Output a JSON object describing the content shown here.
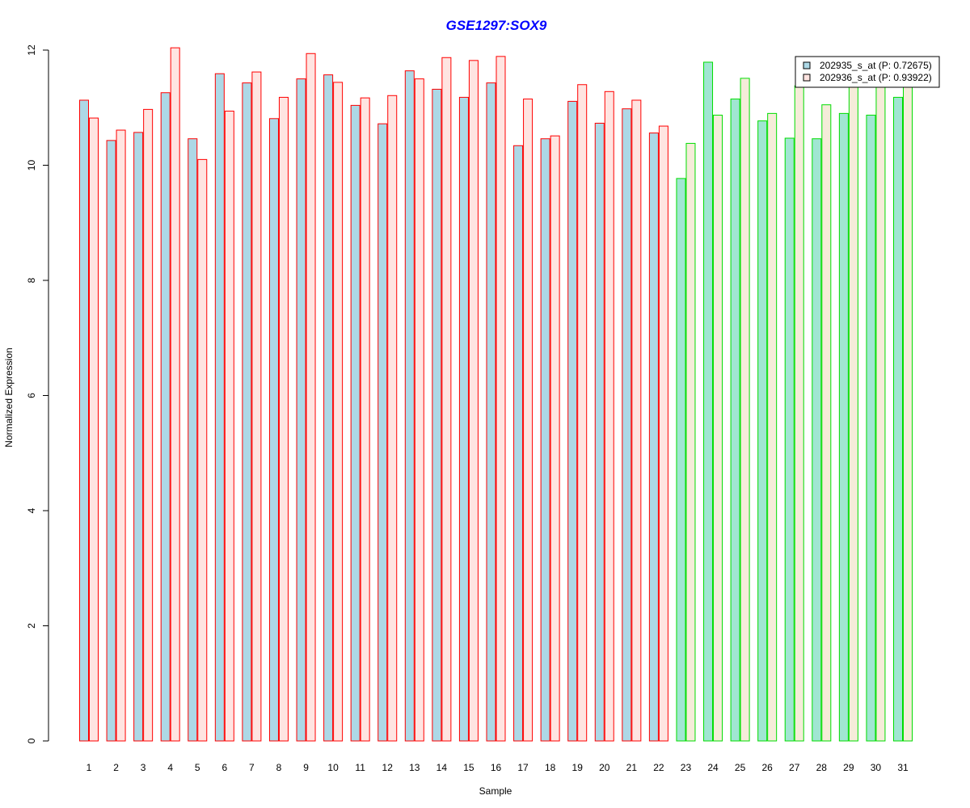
{
  "chart_data": {
    "type": "bar",
    "title": "GSE1297:SOX9",
    "xlabel": "Sample",
    "ylabel": "Normalized Expression",
    "ylim": [
      0,
      12
    ],
    "yticks": [
      0,
      2,
      4,
      6,
      8,
      10,
      12
    ],
    "grid": false,
    "legend_position": "top-right",
    "categories": [
      "1",
      "2",
      "3",
      "4",
      "5",
      "6",
      "7",
      "8",
      "9",
      "10",
      "11",
      "12",
      "13",
      "14",
      "15",
      "16",
      "17",
      "18",
      "19",
      "20",
      "21",
      "22",
      "23",
      "24",
      "25",
      "26",
      "27",
      "28",
      "29",
      "30",
      "31"
    ],
    "series": [
      {
        "name": "202935_s_at (P: 0.72675)",
        "values": [
          11.13,
          10.43,
          10.57,
          11.26,
          10.46,
          11.59,
          11.43,
          10.81,
          11.5,
          11.57,
          11.04,
          10.72,
          11.64,
          11.32,
          11.18,
          11.43,
          10.34,
          10.46,
          11.11,
          10.73,
          10.98,
          10.56,
          9.77,
          11.79,
          11.15,
          10.77,
          10.47,
          10.46,
          10.9,
          10.87,
          11.18
        ]
      },
      {
        "name": "202936_s_at (P: 0.93922)",
        "values": [
          10.82,
          10.61,
          10.97,
          12.04,
          10.1,
          10.94,
          11.62,
          11.18,
          11.94,
          11.44,
          11.17,
          11.21,
          11.5,
          11.87,
          11.82,
          11.89,
          11.15,
          10.51,
          11.4,
          11.28,
          11.13,
          10.68,
          10.38,
          10.87,
          11.51,
          10.9,
          11.38,
          11.05,
          11.38,
          11.38,
          11.38
        ]
      }
    ],
    "group_split_after": "22",
    "colors": {
      "title": "#0000ff",
      "group1_border": "#ff0000",
      "group2_border": "#00dd00",
      "group1_fill_series1": "#add8e6",
      "group1_fill_series2": "#ffe4e1",
      "group2_fill_series1": "#a0e6d2",
      "group2_fill_series2": "#f5ecd9",
      "legend_fill_series1": "#add8e6",
      "legend_fill_series2": "#ffe4e1"
    }
  }
}
